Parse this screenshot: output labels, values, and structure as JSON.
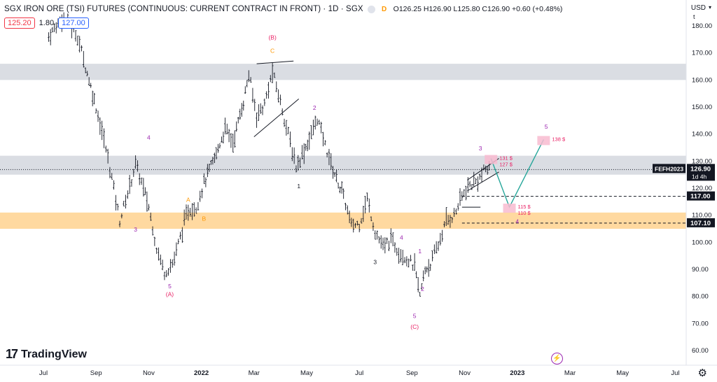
{
  "header": {
    "title": "SGX IRON ORE (TSI) FUTURES (CONTINUOUS: CURRENT CONTRACT IN FRONT) · 1D · SGX",
    "badge": "D",
    "open": "O126.25",
    "high": "H126.90",
    "low": "L125.80",
    "close": "C126.90",
    "change": "+0.60 (+0.48%)",
    "sell": "125.20",
    "spread": "1.80",
    "buy": "127.00"
  },
  "axis": {
    "currency": "USD",
    "caret": "▾",
    "scale_label": "t",
    "y_ticks": [
      180,
      170,
      160,
      150,
      140,
      130,
      120,
      110,
      100,
      90,
      80,
      70,
      60
    ],
    "y_tick_labels": [
      "180.00",
      "170.00",
      "160.00",
      "150.00",
      "140.00",
      "130.00",
      "120.00",
      "110.00",
      "100.00",
      "90.00",
      "80.00",
      "70.00",
      "60.00"
    ],
    "x_ticks": [
      {
        "label": "Jul",
        "t": 0
      },
      {
        "label": "Sep",
        "t": 2
      },
      {
        "label": "Nov",
        "t": 4
      },
      {
        "label": "2022",
        "t": 6
      },
      {
        "label": "Mar",
        "t": 8
      },
      {
        "label": "May",
        "t": 10
      },
      {
        "label": "Jul",
        "t": 12
      },
      {
        "label": "Sep",
        "t": 14
      },
      {
        "label": "Nov",
        "t": 16
      },
      {
        "label": "2023",
        "t": 18
      },
      {
        "label": "Mar",
        "t": 20
      },
      {
        "label": "May",
        "t": 22
      },
      {
        "label": "Jul",
        "t": 24
      }
    ]
  },
  "price_labels": {
    "symbol": "FEFH2023",
    "last": "126.90",
    "timer": "1d 4h",
    "level1": "117.00",
    "level2": "107.10"
  },
  "brand": {
    "logo": "17",
    "name": "TradingView"
  },
  "colors": {
    "gray_zone": "#d1d4dc",
    "orange_zone": "#ffcc80",
    "purple": "#9c27b0",
    "orange": "#ff9800",
    "red": "#e91e63",
    "projection": "#26a69a",
    "target_box": "#f8bbd0",
    "bars": "#131722"
  },
  "chart_data": {
    "type": "ohlc",
    "x_unit": "months since Jul 2021 (1d bars)",
    "zones": [
      {
        "kind": "resistance",
        "from": 160,
        "to": 166
      },
      {
        "kind": "resistance",
        "from": 125,
        "to": 132
      },
      {
        "kind": "support",
        "from": 105,
        "to": 111
      }
    ],
    "horizontal_levels": [
      126.9,
      117.0,
      107.1
    ],
    "price_path": [
      {
        "t": 0.2,
        "p": 176
      },
      {
        "t": 0.7,
        "p": 183
      },
      {
        "t": 1.0,
        "p": 181
      },
      {
        "t": 1.3,
        "p": 176
      },
      {
        "t": 1.6,
        "p": 165
      },
      {
        "t": 2.0,
        "p": 150
      },
      {
        "t": 2.3,
        "p": 138
      },
      {
        "t": 2.6,
        "p": 124
      },
      {
        "t": 2.9,
        "p": 108
      },
      {
        "t": 3.2,
        "p": 118
      },
      {
        "t": 3.5,
        "p": 129
      },
      {
        "t": 3.8,
        "p": 120
      },
      {
        "t": 4.0,
        "p": 113
      },
      {
        "t": 4.3,
        "p": 98
      },
      {
        "t": 4.6,
        "p": 89
      },
      {
        "t": 4.9,
        "p": 92
      },
      {
        "t": 5.2,
        "p": 102
      },
      {
        "t": 5.5,
        "p": 112
      },
      {
        "t": 5.8,
        "p": 113
      },
      {
        "t": 6.1,
        "p": 122
      },
      {
        "t": 6.5,
        "p": 131
      },
      {
        "t": 6.9,
        "p": 142
      },
      {
        "t": 7.2,
        "p": 137
      },
      {
        "t": 7.6,
        "p": 152
      },
      {
        "t": 7.8,
        "p": 162
      },
      {
        "t": 8.1,
        "p": 147
      },
      {
        "t": 8.4,
        "p": 151
      },
      {
        "t": 8.7,
        "p": 163
      },
      {
        "t": 9.0,
        "p": 152
      },
      {
        "t": 9.3,
        "p": 140
      },
      {
        "t": 9.6,
        "p": 128
      },
      {
        "t": 9.9,
        "p": 134
      },
      {
        "t": 10.1,
        "p": 138
      },
      {
        "t": 10.4,
        "p": 146
      },
      {
        "t": 10.7,
        "p": 136
      },
      {
        "t": 11.0,
        "p": 127
      },
      {
        "t": 11.4,
        "p": 117
      },
      {
        "t": 11.7,
        "p": 106
      },
      {
        "t": 12.0,
        "p": 107
      },
      {
        "t": 12.3,
        "p": 116
      },
      {
        "t": 12.6,
        "p": 104
      },
      {
        "t": 12.9,
        "p": 98
      },
      {
        "t": 13.2,
        "p": 101
      },
      {
        "t": 13.5,
        "p": 97
      },
      {
        "t": 13.8,
        "p": 94
      },
      {
        "t": 14.1,
        "p": 91
      },
      {
        "t": 14.3,
        "p": 80
      },
      {
        "t": 14.5,
        "p": 90
      },
      {
        "t": 14.7,
        "p": 92
      },
      {
        "t": 15.0,
        "p": 99
      },
      {
        "t": 15.3,
        "p": 108
      },
      {
        "t": 15.6,
        "p": 110
      },
      {
        "t": 15.9,
        "p": 117
      },
      {
        "t": 16.2,
        "p": 121
      },
      {
        "t": 16.5,
        "p": 123
      },
      {
        "t": 16.8,
        "p": 127
      },
      {
        "t": 17.0,
        "p": 126.9
      }
    ],
    "projection": [
      {
        "t": 17.0,
        "p": 131
      },
      {
        "t": 17.7,
        "p": 113
      },
      {
        "t": 19.0,
        "p": 138
      }
    ],
    "targets": [
      {
        "t": 17.0,
        "p": 131,
        "labels": [
          "131 $",
          "127 $"
        ]
      },
      {
        "t": 17.7,
        "p": 113,
        "labels": [
          "115 $",
          "110 $"
        ]
      },
      {
        "t": 19.0,
        "p": 138,
        "labels": [
          "138 $"
        ]
      }
    ],
    "wave_labels": [
      {
        "text": "(B)",
        "t": 8.7,
        "p": 175,
        "color": "red"
      },
      {
        "text": "C",
        "t": 8.7,
        "p": 170,
        "color": "orange"
      },
      {
        "text": "4",
        "t": 4.0,
        "p": 138,
        "color": "purple"
      },
      {
        "text": "3",
        "t": 3.5,
        "p": 104,
        "color": "purple"
      },
      {
        "text": "A",
        "t": 5.5,
        "p": 115,
        "color": "orange"
      },
      {
        "text": "B",
        "t": 6.1,
        "p": 108,
        "color": "orange"
      },
      {
        "text": "5",
        "t": 4.8,
        "p": 83,
        "color": "purple"
      },
      {
        "text": "(A)",
        "t": 4.8,
        "p": 80,
        "color": "red"
      },
      {
        "text": "2",
        "t": 10.3,
        "p": 149,
        "color": "purple"
      },
      {
        "text": "1",
        "t": 9.7,
        "p": 120,
        "color": "black"
      },
      {
        "text": "4",
        "t": 13.6,
        "p": 101,
        "color": "purple"
      },
      {
        "text": "3",
        "t": 12.6,
        "p": 92,
        "color": "black"
      },
      {
        "text": "1",
        "t": 14.3,
        "p": 96,
        "color": "purple"
      },
      {
        "text": "2",
        "t": 14.4,
        "p": 82,
        "color": "purple"
      },
      {
        "text": "5",
        "t": 14.1,
        "p": 72,
        "color": "purple"
      },
      {
        "text": "(C)",
        "t": 14.1,
        "p": 68,
        "color": "red"
      },
      {
        "text": "3",
        "t": 16.6,
        "p": 134,
        "color": "purple"
      },
      {
        "text": "4",
        "t": 18.0,
        "p": 107,
        "color": "purple"
      },
      {
        "text": "5",
        "t": 19.1,
        "p": 142,
        "color": "purple"
      }
    ],
    "ylim": [
      57,
      183
    ]
  }
}
